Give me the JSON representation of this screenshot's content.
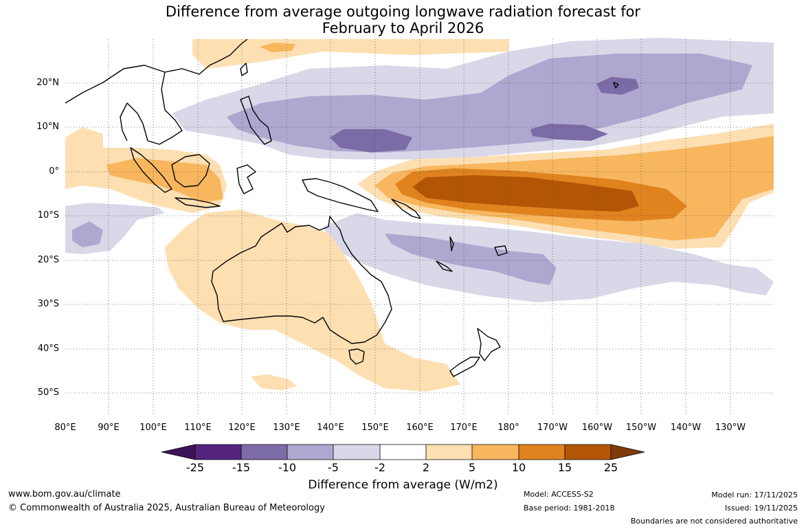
{
  "title": {
    "line1": "Difference from average outgoing longwave radiation forecast for",
    "line2": "February to April 2026"
  },
  "map": {
    "lat_labels": [
      "20°N",
      "10°N",
      "0°",
      "10°S",
      "20°S",
      "30°S",
      "40°S",
      "50°S"
    ],
    "lon_labels": [
      "80°E",
      "90°E",
      "100°E",
      "110°E",
      "120°E",
      "130°E",
      "140°E",
      "150°E",
      "160°E",
      "170°E",
      "180°",
      "170°W",
      "160°W",
      "150°W",
      "140°W",
      "130°W"
    ]
  },
  "colorbar": {
    "ticks": [
      "-25",
      "-15",
      "-10",
      "-5",
      "-2",
      "2",
      "5",
      "10",
      "15",
      "25"
    ],
    "colors": {
      "lt_-25": "#3d1358",
      "-25_-15": "#55247d",
      "-15_-10": "#7b6ba6",
      "-10_-5": "#aea7cf",
      "-5_-2": "#d8d8e9",
      "-2_2": "#ffffff",
      "2_5": "#fddfb2",
      "5_10": "#f8b65e",
      "10_15": "#e0831f",
      "15_25": "#b25606",
      "gt_25": "#7f3b08"
    },
    "label": "Difference from average (W/m2)"
  },
  "footer": {
    "url": "www.bom.gov.au/climate",
    "copyright": "© Commonwealth of Australia 2025, Australian Bureau of Meteorology",
    "model": "Model: ACCESS-S2",
    "base_period": "Base period: 1981-2018",
    "model_run": "Model run: 17/11/2025",
    "issued": "Issued: 19/11/2025",
    "disclaimer": "Boundaries are not considered authoritative"
  }
}
